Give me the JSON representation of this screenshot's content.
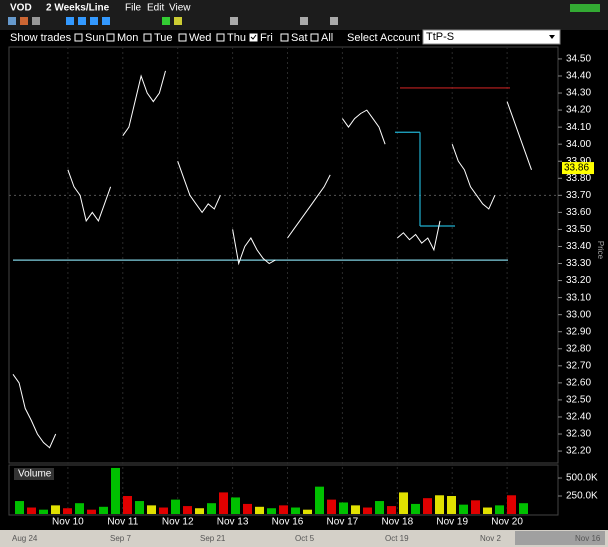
{
  "toolbar": {
    "symbol": "VOD",
    "period": "2 Weeks/Line",
    "menus": [
      "File",
      "Edit",
      "View"
    ]
  },
  "filters": {
    "label": "Show trades",
    "days": [
      {
        "label": "Sun",
        "checked": false
      },
      {
        "label": "Mon",
        "checked": false
      },
      {
        "label": "Tue",
        "checked": false
      },
      {
        "label": "Wed",
        "checked": false
      },
      {
        "label": "Thu",
        "checked": false
      },
      {
        "label": "Fri",
        "checked": true
      },
      {
        "label": "Sat",
        "checked": false
      },
      {
        "label": "All",
        "checked": false
      }
    ],
    "account_label": "Select Account",
    "account": "TtP-S"
  },
  "chart_data": [
    {
      "type": "line",
      "y_label": "Price",
      "series": [
        {
          "name": "VOD",
          "color": "#ffffff",
          "values": [
            32.65,
            32.6,
            32.45,
            32.38,
            32.3,
            32.25,
            32.22,
            32.3,
            null,
            33.85,
            33.75,
            33.7,
            33.55,
            33.6,
            33.55,
            33.65,
            33.75,
            null,
            34.05,
            34.1,
            34.25,
            34.4,
            34.3,
            34.25,
            34.3,
            34.43,
            null,
            33.9,
            33.8,
            33.7,
            33.65,
            33.6,
            33.65,
            33.62,
            33.7,
            null,
            33.5,
            33.3,
            33.4,
            33.45,
            33.38,
            33.33,
            33.3,
            33.32,
            null,
            33.45,
            33.5,
            33.55,
            33.6,
            33.65,
            33.7,
            33.75,
            33.82,
            null,
            34.15,
            34.1,
            34.15,
            34.18,
            34.2,
            34.15,
            34.1,
            34.0,
            null,
            33.45,
            33.48,
            33.44,
            33.47,
            33.42,
            33.45,
            33.38,
            33.55,
            null,
            34.0,
            33.9,
            33.85,
            33.75,
            33.7,
            33.65,
            33.62,
            33.7,
            null,
            34.25,
            34.15,
            34.05,
            33.95,
            33.85
          ]
        }
      ],
      "day_labels": [
        "Nov 10",
        "Nov 11",
        "Nov 12",
        "Nov 13",
        "Nov 16",
        "Nov 17",
        "Nov 18",
        "Nov 19",
        "Nov 20"
      ],
      "ylim": [
        32.13,
        34.57
      ],
      "yticks": [
        {
          "value": 32.2,
          "label": "32.20"
        },
        {
          "value": 32.3,
          "label": "32.30"
        },
        {
          "value": 32.4,
          "label": "32.40"
        },
        {
          "value": 32.5,
          "label": "32.50"
        },
        {
          "value": 32.6,
          "label": "32.60"
        },
        {
          "value": 32.7,
          "label": "32.70"
        },
        {
          "value": 32.8,
          "label": "32.80"
        },
        {
          "value": 32.9,
          "label": "32.90"
        },
        {
          "value": 33.0,
          "label": "33.00"
        },
        {
          "value": 33.1,
          "label": "33.10"
        },
        {
          "value": 33.2,
          "label": "33.20"
        },
        {
          "value": 33.3,
          "label": "33.30"
        },
        {
          "value": 33.4,
          "label": "33.40"
        },
        {
          "value": 33.5,
          "label": "33.50"
        },
        {
          "value": 33.6,
          "label": "33.60"
        },
        {
          "value": 33.7,
          "label": "33.70"
        },
        {
          "value": 33.8,
          "label": "33.80"
        },
        {
          "value": 33.9,
          "label": "33.90"
        },
        {
          "value": 34.0,
          "label": "34.00"
        },
        {
          "value": 34.1,
          "label": "34.10"
        },
        {
          "value": 34.2,
          "label": "34.20"
        },
        {
          "value": 34.3,
          "label": "34.30"
        },
        {
          "value": 34.4,
          "label": "34.40"
        },
        {
          "value": 34.5,
          "label": "34.50"
        }
      ],
      "last_price": {
        "value": 33.86,
        "label": "33.86"
      },
      "levels": [
        {
          "value": 33.32,
          "color": "#7fd0e0"
        },
        {
          "value": 34.33,
          "color": "#c02020"
        },
        {
          "value": 34.07,
          "color": "#20b0d0"
        },
        {
          "value": 33.52,
          "color": "#20b0d0"
        }
      ],
      "dashed_level": 33.7
    },
    {
      "type": "bar",
      "title": "Volume",
      "values": [
        180000,
        90000,
        60000,
        120000,
        80000,
        150000,
        60000,
        100000,
        640000,
        250000,
        180000,
        120000,
        90000,
        200000,
        110000,
        80000,
        150000,
        300000,
        230000,
        140000,
        100000,
        80000,
        120000,
        90000,
        60000,
        380000,
        200000,
        160000,
        120000,
        90000,
        180000,
        110000,
        300000,
        140000,
        220000,
        260000,
        250000,
        130000,
        190000,
        90000,
        120000,
        260000,
        150000
      ],
      "colors": [
        "#00c000",
        "#e00000",
        "#00c000",
        "#e0e000",
        "#e00000",
        "#00c000",
        "#e00000",
        "#00c000",
        "#00c000",
        "#e00000",
        "#00c000",
        "#e0e000",
        "#e00000",
        "#00c000",
        "#e00000",
        "#e0e000",
        "#00c000",
        "#e00000",
        "#00c000",
        "#e00000",
        "#e0e000",
        "#00c000",
        "#e00000",
        "#00c000",
        "#e0e000",
        "#00c000",
        "#e00000",
        "#00c000",
        "#e0e000",
        "#e00000",
        "#00c000",
        "#e00000",
        "#e0e000",
        "#00c000",
        "#e00000",
        "#e0e000",
        "#e0e000",
        "#00c000",
        "#e00000",
        "#e0e000",
        "#00c000",
        "#e00000",
        "#00c000"
      ],
      "ylim": [
        0,
        667000
      ],
      "yticks": [
        {
          "value": 250000,
          "label": "250.0K"
        },
        {
          "value": 500000,
          "label": "500.0K"
        }
      ]
    }
  ],
  "scrollbar": {
    "dates": [
      "Aug 24",
      "Sep 7",
      "Sep 21",
      "Oct 5",
      "Oct 19",
      "Nov 2",
      "Nov 16"
    ]
  }
}
